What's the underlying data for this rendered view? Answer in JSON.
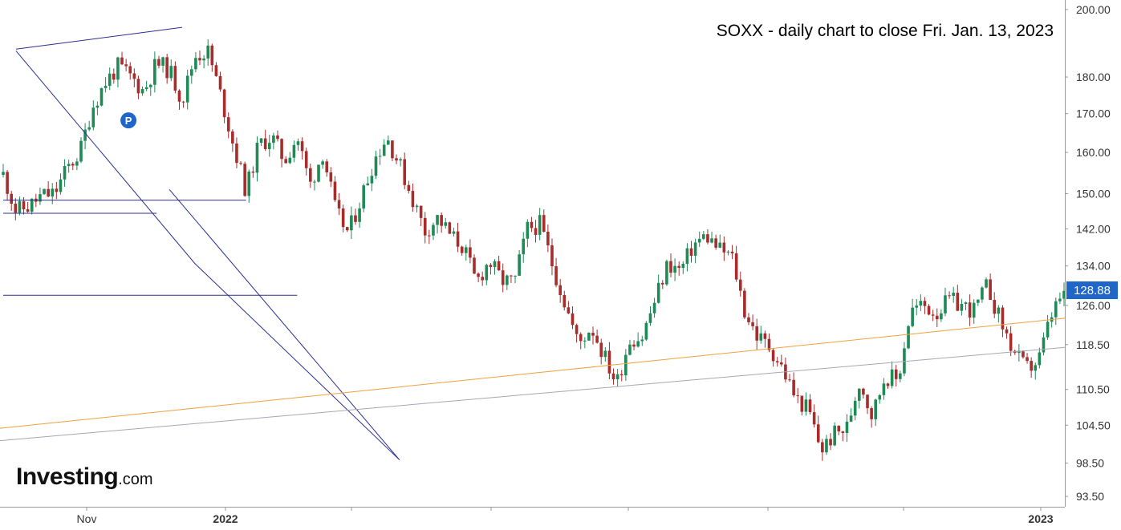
{
  "chart_data": {
    "type": "candlestick",
    "title": "SOXX - daily chart to close Fri. Jan. 13, 2023",
    "y_scale": "log",
    "ylim": [
      92,
      203
    ],
    "y_ticks": [
      "200.00",
      "180.00",
      "170.00",
      "160.00",
      "150.00",
      "142.00",
      "134.00",
      "126.00",
      "118.50",
      "110.50",
      "104.50",
      "98.50",
      "93.50"
    ],
    "x_ticks": [
      {
        "label": "Nov",
        "bold": false
      },
      {
        "label": "2022",
        "bold": true
      },
      {
        "label": "",
        "bold": false
      },
      {
        "label": "",
        "bold": false
      },
      {
        "label": "",
        "bold": false
      },
      {
        "label": "",
        "bold": false
      },
      {
        "label": "",
        "bold": false
      },
      {
        "label": "",
        "bold": false
      },
      {
        "label": "2023",
        "bold": true
      }
    ],
    "last_price": "128.88",
    "path_points": [
      154.5,
      146.0,
      147.0,
      149.5,
      150.0,
      156.0,
      160.0,
      172.0,
      178.5,
      183.0,
      180.0,
      176.0,
      184.0,
      182.0,
      173.5,
      186.0,
      187.5,
      175.0,
      162.0,
      150.5,
      162.0,
      164.0,
      158.0,
      164.0,
      152.0,
      160.0,
      146.0,
      141.0,
      149.0,
      158.0,
      164.0,
      157.0,
      149.0,
      141.5,
      144.5,
      140.5,
      138.0,
      130.5,
      135.0,
      131.0,
      130.5,
      142.0,
      143.0,
      134.0,
      126.0,
      118.5,
      122.0,
      116.5,
      111.5,
      119.5,
      120.0,
      127.0,
      134.5,
      133.0,
      138.5,
      140.5,
      137.5,
      136.0,
      125.0,
      120.0,
      118.0,
      114.0,
      109.0,
      107.0,
      100.5,
      103.0,
      104.0,
      112.0,
      106.0,
      113.0,
      112.0,
      125.0,
      126.0,
      124.5,
      127.0,
      126.0,
      125.0,
      130.0,
      123.0,
      117.5,
      114.0,
      115.5,
      124.0,
      128.88
    ],
    "upper_channel_line": [
      [
        1,
        188.0
      ],
      [
        14,
        194.5
      ]
    ],
    "descending_channel": {
      "upper": [
        [
          1,
          187.5
        ],
        [
          15,
          134.5
        ],
        [
          31,
          99.0
        ]
      ],
      "lower": [
        [
          13,
          151.0
        ],
        [
          31,
          99.0
        ]
      ]
    },
    "horizontal_lines": [
      148.5,
      145.5,
      128.0
    ],
    "trend_lines": [
      {
        "color": "#f0a040",
        "from": 104.0,
        "to": 123.5
      },
      {
        "color": "#a7a7b5",
        "from": 102.0,
        "to": 118.0
      }
    ],
    "marker": "P",
    "colors": {
      "up": "#1e8a55",
      "down": "#a72c2c",
      "channel": "#2b2f8f",
      "accent": "#1f66c8"
    }
  },
  "branding": {
    "main": "Investing",
    "suffix": ".com"
  }
}
